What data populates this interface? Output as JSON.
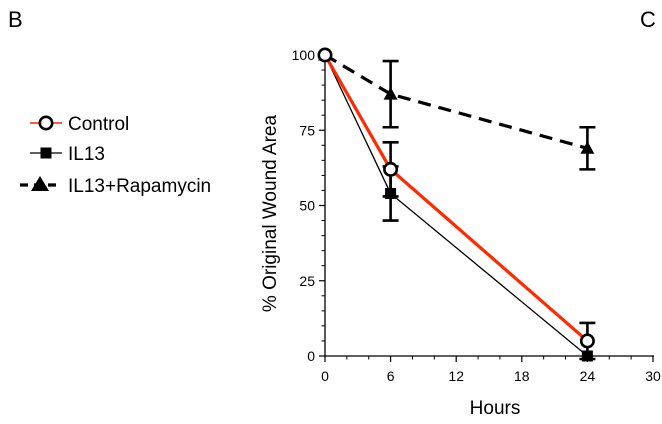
{
  "panel_labels": {
    "left": "B",
    "right": "C"
  },
  "chart_data": {
    "type": "line",
    "xlabel": "Hours",
    "ylabel": "% Original Wound Area",
    "xlim": [
      0,
      30
    ],
    "ylim": [
      0,
      100
    ],
    "xticks": [
      0,
      6,
      12,
      18,
      24,
      30
    ],
    "yticks": [
      0,
      25,
      50,
      75,
      100
    ],
    "xtick_labels": [
      "0",
      "6",
      "12",
      "18",
      "24",
      "30"
    ],
    "ytick_labels": [
      "0",
      "25",
      "50",
      "75",
      "100"
    ],
    "grid": false,
    "legend_position": "left of plot",
    "series": [
      {
        "name": "Control",
        "color": "#ff2a00",
        "line_style": "solid",
        "marker": "open-circle",
        "x": [
          0,
          6,
          24
        ],
        "y": [
          100,
          62,
          5
        ],
        "error": [
          0,
          9,
          6
        ]
      },
      {
        "name": "IL13",
        "color": "#000000",
        "line_style": "solid-thin",
        "marker": "filled-square",
        "x": [
          0,
          6,
          24
        ],
        "y": [
          100,
          54,
          0
        ],
        "error": [
          0,
          9,
          0
        ]
      },
      {
        "name": "IL13+Rapamycin",
        "color": "#000000",
        "line_style": "dashed",
        "marker": "filled-triangle",
        "x": [
          0,
          6,
          24
        ],
        "y": [
          100,
          87,
          69
        ],
        "error": [
          0,
          11,
          7
        ]
      }
    ]
  }
}
